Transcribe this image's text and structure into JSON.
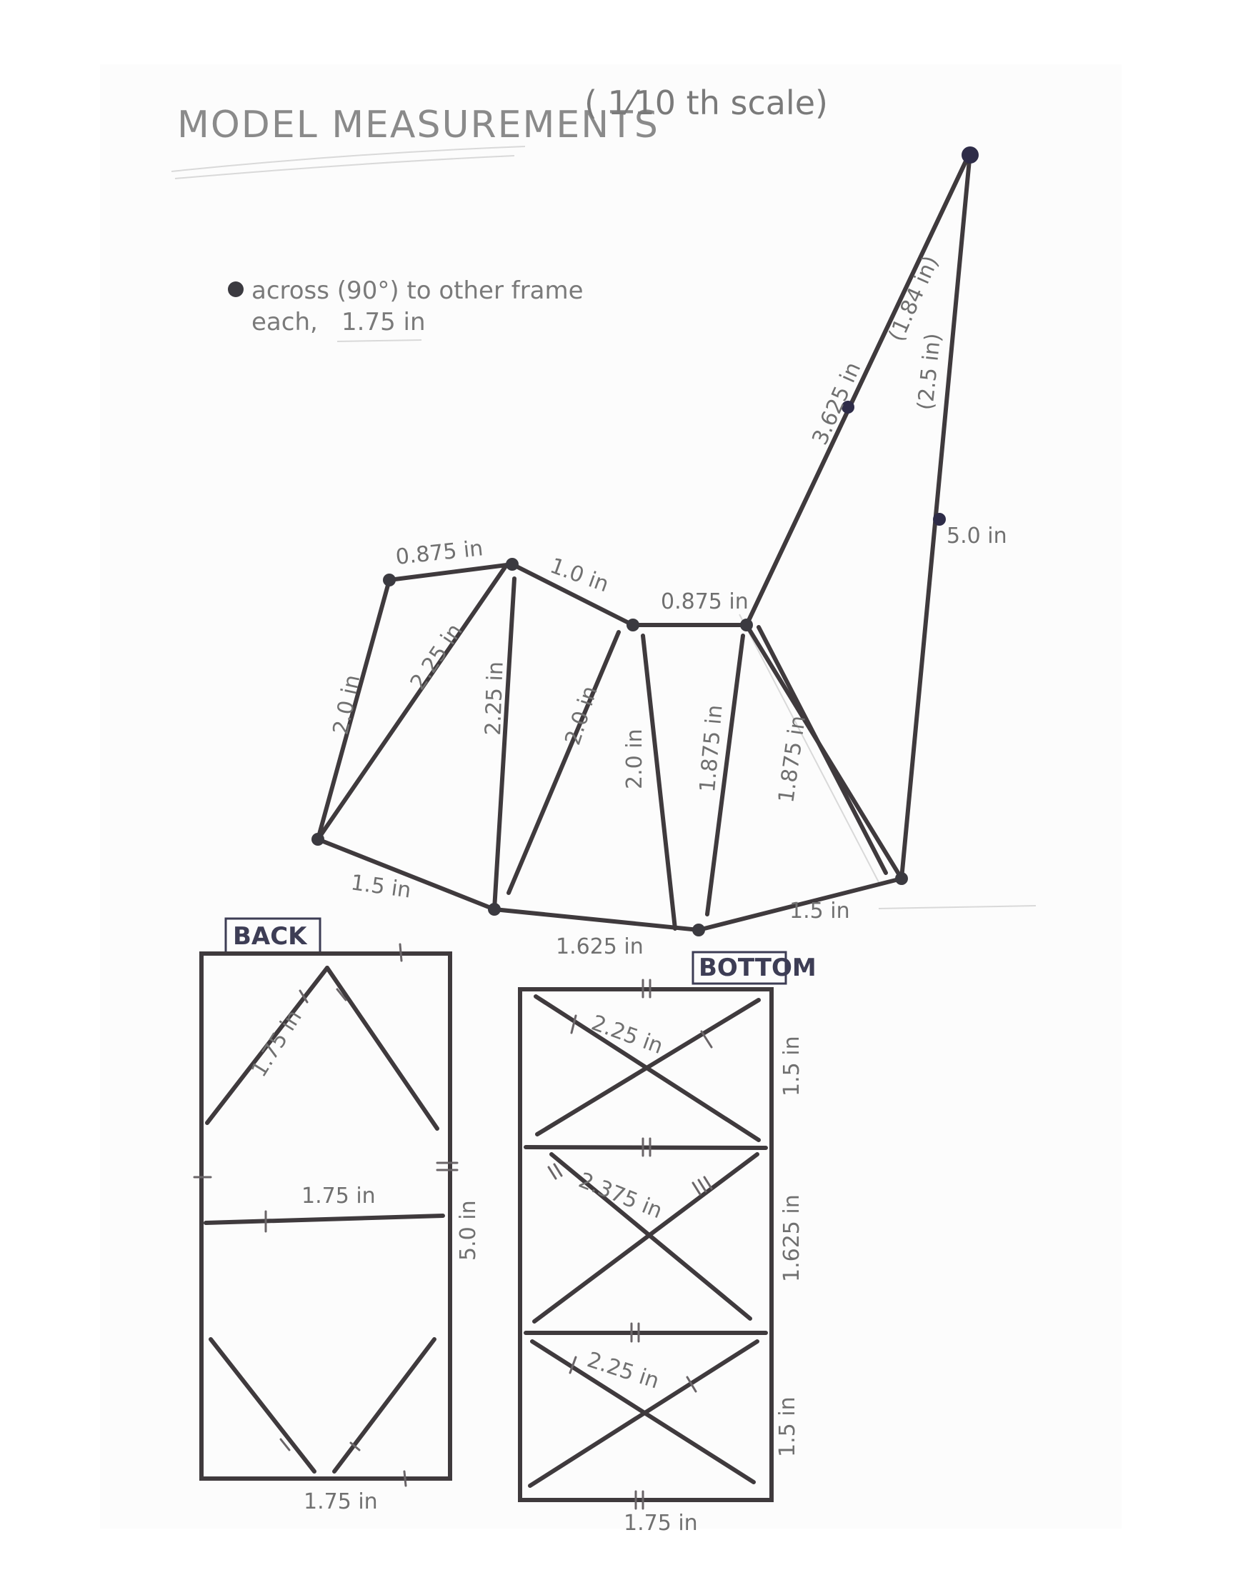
{
  "title": "MODEL MEASUREMENTS",
  "scale_note": "( 1⁄10 th  scale)",
  "legend": {
    "line1": "across (90°) to other frame",
    "line2": "each,",
    "line2_value": "1.75 in"
  },
  "side_view": {
    "top_edges": [
      "0.875 in",
      "1.0 in",
      "0.875 in"
    ],
    "verticals": [
      "2.0 in",
      "2.25 in",
      "2.25 in",
      "2.0 in",
      "2.0 in",
      "1.875 in",
      "1.875 in"
    ],
    "bottom_edges": [
      "1.5 in",
      "1.625 in",
      "1.5 in"
    ],
    "boom_upper": "3.625 in",
    "boom_upper_part": "(1.84 in)",
    "boom_lower": "5.0 in",
    "boom_lower_part": "(2.5 in)"
  },
  "back_view": {
    "label": "BACK",
    "diagonal": "1.75 in",
    "middle": "1.75 in",
    "height": "5.0 in",
    "bottom": "1.75 in"
  },
  "bottom_view": {
    "label": "BOTTOM",
    "diag_top": "2.25 in",
    "diag_mid": "2.375 in",
    "diag_bot": "2.25 in",
    "side_top": "1.5 in",
    "side_mid": "1.625 in",
    "side_bot": "1.5 in",
    "width": "1.75 in"
  }
}
